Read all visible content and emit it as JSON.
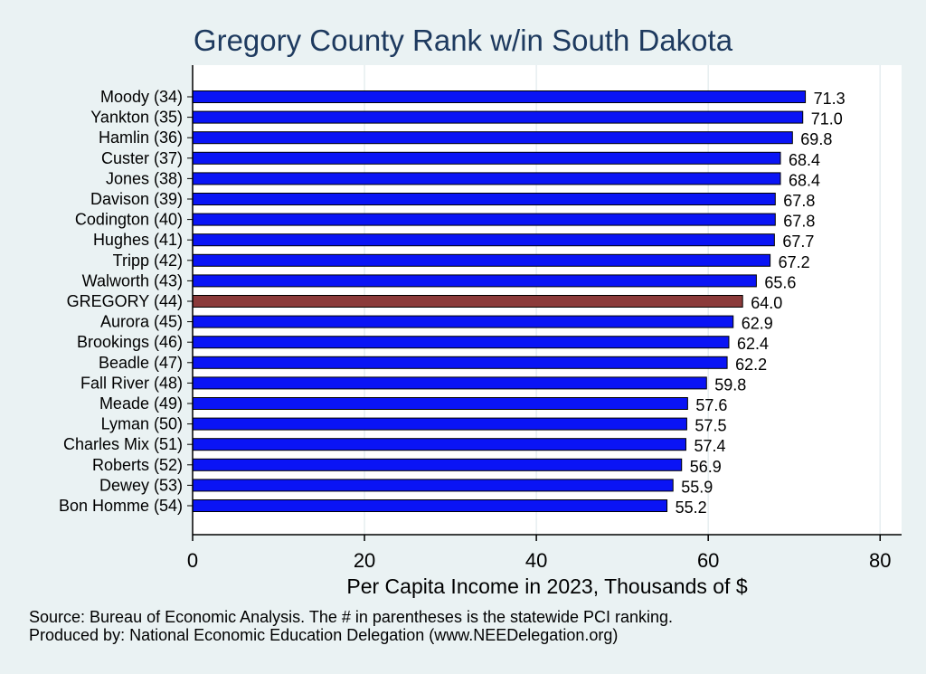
{
  "chart_data": {
    "type": "bar",
    "orientation": "horizontal",
    "title": "Gregory County Rank w/in South Dakota",
    "xlabel": "Per Capita Income in 2023, Thousands of $",
    "ylabel": "",
    "xlim": [
      0,
      82.5
    ],
    "xticks": [
      0,
      20,
      40,
      60,
      80
    ],
    "grid": true,
    "categories": [
      "Moody (34)",
      "Yankton (35)",
      "Hamlin (36)",
      "Custer (37)",
      "Jones (38)",
      "Davison (39)",
      "Codington (40)",
      "Hughes (41)",
      "Tripp (42)",
      "Walworth (43)",
      "GREGORY (44)",
      "Aurora (45)",
      "Brookings (46)",
      "Beadle (47)",
      "Fall River (48)",
      "Meade (49)",
      "Lyman (50)",
      "Charles Mix (51)",
      "Roberts (52)",
      "Dewey (53)",
      "Bon Homme (54)"
    ],
    "values": [
      71.3,
      71.0,
      69.8,
      68.4,
      68.4,
      67.8,
      67.8,
      67.7,
      67.2,
      65.6,
      64.0,
      62.9,
      62.4,
      62.2,
      59.8,
      57.6,
      57.5,
      57.4,
      56.9,
      55.9,
      55.2
    ],
    "value_labels": [
      "71.3",
      "71.0",
      "69.8",
      "68.4",
      "68.4",
      "67.8",
      "67.8",
      "67.7",
      "67.2",
      "65.6",
      "64.0",
      "62.9",
      "62.4",
      "62.2",
      "59.8",
      "57.6",
      "57.5",
      "57.4",
      "56.9",
      "55.9",
      "55.2"
    ],
    "highlight_index": 10,
    "colors": {
      "bar": "#0a14f5",
      "highlight": "#8b3a3a",
      "bar_outline": "#000000",
      "plot_background": "#ffffff",
      "page_background": "#eaf2f3",
      "grid": "#e6eef0",
      "title": "#1e3a5f"
    }
  },
  "notes": {
    "source": "Source: Bureau of Economic Analysis. The # in parentheses is the statewide PCI ranking.",
    "produced_by": "Produced by: National Economic Education Delegation (www.NEEDelegation.org)"
  }
}
